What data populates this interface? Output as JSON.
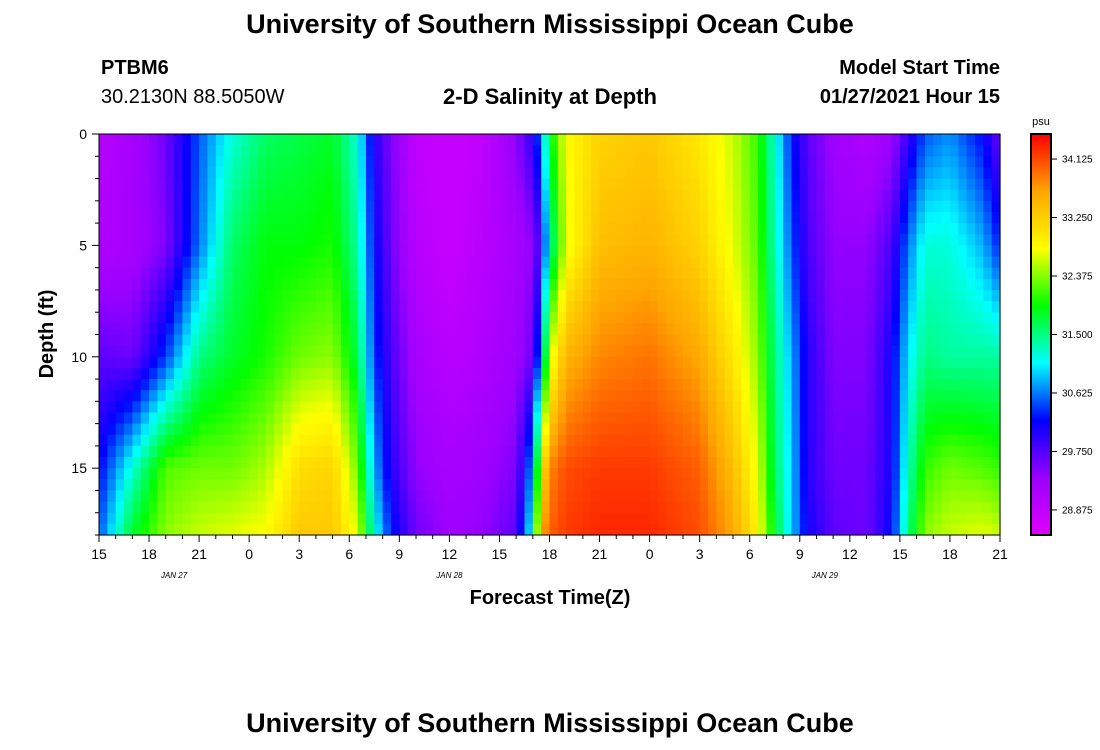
{
  "page": {
    "title_top": "University of Southern Mississippi Ocean Cube",
    "title_bottom": "University of Southern Mississippi Ocean Cube",
    "station": "PTBM6",
    "location": "30.2130N 88.5050W",
    "model_start_label": "Model Start Time",
    "model_start_value": "01/27/2021 Hour 15"
  },
  "chart_data": {
    "type": "heatmap",
    "title": "2-D Salinity at Depth",
    "xlabel": "Forecast Time(Z)",
    "ylabel": "Depth (ft)",
    "x_tick_labels": [
      "15",
      "18",
      "21",
      "0",
      "3",
      "6",
      "9",
      "12",
      "15",
      "18",
      "21",
      "0",
      "3",
      "6",
      "9",
      "12",
      "15",
      "18",
      "21"
    ],
    "x_range_hours_from_start": [
      0,
      54
    ],
    "x_step_hours": 3,
    "date_labels": [
      {
        "label": "JAN 27",
        "at_hour": 4.5
      },
      {
        "label": "JAN 28",
        "at_hour": 21
      },
      {
        "label": "JAN 29",
        "at_hour": 43.5
      }
    ],
    "y_range": [
      0,
      18
    ],
    "y_ticks": [
      0,
      5,
      10,
      15
    ],
    "y_reversed": true,
    "colorbar": {
      "unit": "psu",
      "min": 28.5,
      "max": 34.5,
      "tick_labels": [
        "34.125",
        "33.250",
        "32.375",
        "31.500",
        "30.625",
        "29.750",
        "28.875"
      ],
      "tick_values": [
        34.125,
        33.25,
        32.375,
        31.5,
        30.625,
        29.75,
        28.875
      ],
      "colors": [
        "#e000ff",
        "#9a00ff",
        "#0000ff",
        "#00ffff",
        "#00ff00",
        "#ffff00",
        "#ffa500",
        "#ff0000"
      ]
    },
    "grid": false,
    "salinity_profiles": {
      "description": "psu at depths (ft)",
      "depths": [
        0,
        5,
        10,
        15,
        18
      ],
      "columns": [
        {
          "hour": 0,
          "values": [
            29.0,
            29.1,
            29.7,
            30.2,
            30.5
          ]
        },
        {
          "hour": 2,
          "values": [
            29.2,
            29.2,
            29.6,
            31.2,
            31.8
          ]
        },
        {
          "hour": 4,
          "values": [
            29.6,
            29.5,
            30.4,
            32.2,
            32.4
          ]
        },
        {
          "hour": 6,
          "values": [
            30.5,
            30.6,
            31.5,
            32.3,
            32.6
          ]
        },
        {
          "hour": 8,
          "values": [
            31.2,
            31.6,
            31.8,
            32.3,
            32.7
          ]
        },
        {
          "hour": 10,
          "values": [
            31.6,
            31.9,
            32.0,
            32.5,
            32.8
          ]
        },
        {
          "hour": 12,
          "values": [
            31.7,
            31.9,
            32.3,
            33.1,
            33.3
          ]
        },
        {
          "hour": 14,
          "values": [
            31.8,
            32.0,
            32.4,
            33.2,
            33.3
          ]
        },
        {
          "hour": 15.5,
          "values": [
            31.2,
            31.4,
            31.7,
            32.3,
            32.7
          ]
        },
        {
          "hour": 16.5,
          "values": [
            30.0,
            30.2,
            30.4,
            30.8,
            31.2
          ]
        },
        {
          "hour": 17.5,
          "values": [
            29.5,
            29.6,
            29.8,
            30.0,
            30.3
          ]
        },
        {
          "hour": 19,
          "values": [
            28.9,
            29.0,
            29.2,
            29.4,
            29.6
          ]
        },
        {
          "hour": 21,
          "values": [
            28.8,
            28.8,
            29.0,
            29.2,
            29.3
          ]
        },
        {
          "hour": 23,
          "values": [
            28.9,
            29.0,
            29.1,
            29.3,
            29.4
          ]
        },
        {
          "hour": 25,
          "values": [
            29.4,
            29.2,
            29.3,
            29.5,
            29.7
          ]
        },
        {
          "hour": 26,
          "values": [
            30.0,
            29.4,
            29.6,
            30.8,
            31.3
          ]
        },
        {
          "hour": 26.5,
          "values": [
            30.7,
            30.0,
            30.9,
            32.9,
            33.6
          ]
        },
        {
          "hour": 27,
          "values": [
            31.8,
            31.3,
            32.6,
            33.8,
            34.0
          ]
        },
        {
          "hour": 28,
          "values": [
            32.8,
            32.7,
            33.5,
            34.1,
            34.2
          ]
        },
        {
          "hour": 30,
          "values": [
            33.2,
            33.4,
            33.8,
            34.2,
            34.3
          ]
        },
        {
          "hour": 33,
          "values": [
            33.3,
            33.5,
            33.9,
            34.2,
            34.3
          ]
        },
        {
          "hour": 36,
          "values": [
            33.0,
            33.2,
            33.6,
            34.0,
            34.1
          ]
        },
        {
          "hour": 38,
          "values": [
            32.6,
            32.7,
            33.0,
            33.4,
            33.6
          ]
        },
        {
          "hour": 39.5,
          "values": [
            32.1,
            32.2,
            32.4,
            32.7,
            32.9
          ]
        },
        {
          "hour": 40.5,
          "values": [
            31.2,
            31.3,
            31.5,
            31.6,
            31.8
          ]
        },
        {
          "hour": 41.5,
          "values": [
            30.3,
            30.5,
            30.8,
            30.9,
            30.9
          ]
        },
        {
          "hour": 42.5,
          "values": [
            29.7,
            29.8,
            30.0,
            30.0,
            30.1
          ]
        },
        {
          "hour": 44,
          "values": [
            29.3,
            29.4,
            29.5,
            29.6,
            29.7
          ]
        },
        {
          "hour": 46,
          "values": [
            29.1,
            29.4,
            29.5,
            29.6,
            29.6
          ]
        },
        {
          "hour": 47.5,
          "values": [
            29.3,
            29.8,
            30.1,
            30.1,
            30.2
          ]
        },
        {
          "hour": 48.5,
          "values": [
            29.9,
            30.6,
            31.0,
            31.3,
            31.5
          ]
        },
        {
          "hour": 49.5,
          "values": [
            30.5,
            31.2,
            31.5,
            32.1,
            32.4
          ]
        },
        {
          "hour": 51,
          "values": [
            30.7,
            31.2,
            31.4,
            32.3,
            32.6
          ]
        },
        {
          "hour": 53,
          "values": [
            30.2,
            30.8,
            31.4,
            32.2,
            32.7
          ]
        },
        {
          "hour": 54,
          "values": [
            29.6,
            30.3,
            31.4,
            32.1,
            32.6
          ]
        }
      ]
    }
  }
}
